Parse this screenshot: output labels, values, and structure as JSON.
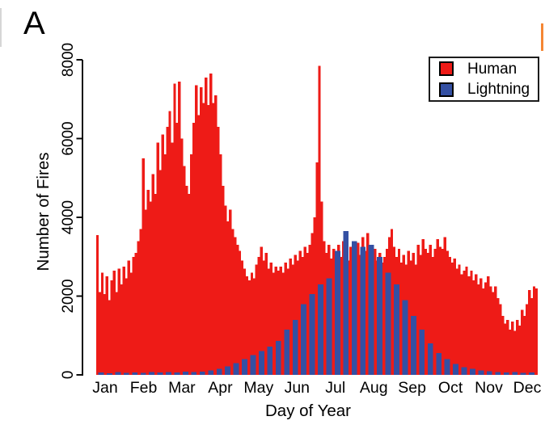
{
  "panel_label": "A",
  "y_axis": {
    "title": "Number of Fires",
    "ticks": [
      0,
      2000,
      4000,
      6000,
      8000
    ]
  },
  "x_axis": {
    "title": "Day of Year",
    "months": [
      "Jan",
      "Feb",
      "Mar",
      "Apr",
      "May",
      "Jun",
      "Jul",
      "Aug",
      "Sep",
      "Oct",
      "Nov",
      "Dec"
    ]
  },
  "legend": {
    "items": [
      {
        "label": "Human",
        "color": "#ee1b17"
      },
      {
        "label": "Lightning",
        "color": "#3450a3"
      }
    ]
  },
  "chart_data": {
    "type": "bar",
    "title": "",
    "xlabel": "Day of Year",
    "ylabel": "Number of Fires",
    "ylim": [
      0,
      8000
    ],
    "x_unit": "day of year (1-365)",
    "grid": false,
    "legend_position": "top-right",
    "description": "Daily number of wildfires by ignition cause; red human-caused bars drawn contiguously behind spaced blue lightning-caused bars",
    "series": [
      {
        "name": "Human",
        "color": "#ee1b17",
        "day_start": 1,
        "day_step": 2,
        "values": [
          3550,
          2100,
          2600,
          2050,
          2500,
          1900,
          2400,
          2650,
          2100,
          2700,
          2300,
          2750,
          2450,
          2900,
          2600,
          3000,
          3100,
          3400,
          3700,
          5500,
          4200,
          4700,
          4400,
          5100,
          4600,
          5900,
          5200,
          6100,
          5600,
          6300,
          6700,
          5900,
          7400,
          6400,
          7450,
          6000,
          5300,
          4800,
          4600,
          5600,
          6400,
          7350,
          6600,
          7300,
          6900,
          7550,
          6850,
          7650,
          6900,
          7100,
          6300,
          5600,
          4800,
          4300,
          3900,
          4200,
          3700,
          3500,
          3300,
          3150,
          2900,
          2700,
          2500,
          2400,
          2600,
          2450,
          2800,
          3000,
          3250,
          2900,
          3100,
          2700,
          2850,
          2600,
          2750,
          2650,
          2750,
          2600,
          2850,
          2700,
          2950,
          2800,
          3050,
          2900,
          3150,
          3000,
          3250,
          3100,
          3300,
          3600,
          4000,
          5400,
          7850,
          4400,
          3400,
          3100,
          3300,
          2950,
          3200,
          2850,
          3300,
          3000,
          3400,
          3100,
          2900,
          3250,
          3050,
          3000,
          3350,
          3050,
          3500,
          3150,
          3600,
          3250,
          2950,
          3200,
          2900,
          3100,
          2850,
          3000,
          3200,
          3500,
          3700,
          3250,
          3000,
          3200,
          2850,
          3050,
          2800,
          3150,
          2900,
          3100,
          2800,
          3300,
          3050,
          3450,
          3200,
          3100,
          3300,
          3000,
          3200,
          3450,
          3250,
          3200,
          3500,
          3150,
          3000,
          2850,
          2950,
          2700,
          2800,
          2550,
          2650,
          2750,
          2500,
          2650,
          2400,
          2550,
          2300,
          2450,
          2200,
          2350,
          2500,
          2250,
          2100,
          2250,
          1950,
          1800,
          1500,
          1300,
          1400,
          1150,
          1350,
          1120,
          1400,
          1250,
          1650,
          1500,
          1800,
          2150,
          1950,
          2250,
          2200
        ]
      },
      {
        "name": "Lightning",
        "color": "#3450a3",
        "day_start": 4,
        "day_step": 7,
        "values": [
          60,
          45,
          70,
          55,
          65,
          50,
          70,
          60,
          75,
          65,
          80,
          70,
          85,
          110,
          150,
          220,
          300,
          400,
          500,
          610,
          720,
          860,
          1150,
          1400,
          1800,
          2050,
          2300,
          2450,
          3150,
          3650,
          3400,
          3250,
          3300,
          3000,
          2600,
          2300,
          1900,
          1500,
          1150,
          800,
          550,
          400,
          280,
          200,
          150,
          110,
          90,
          75,
          60,
          70,
          55,
          65
        ]
      }
    ]
  }
}
